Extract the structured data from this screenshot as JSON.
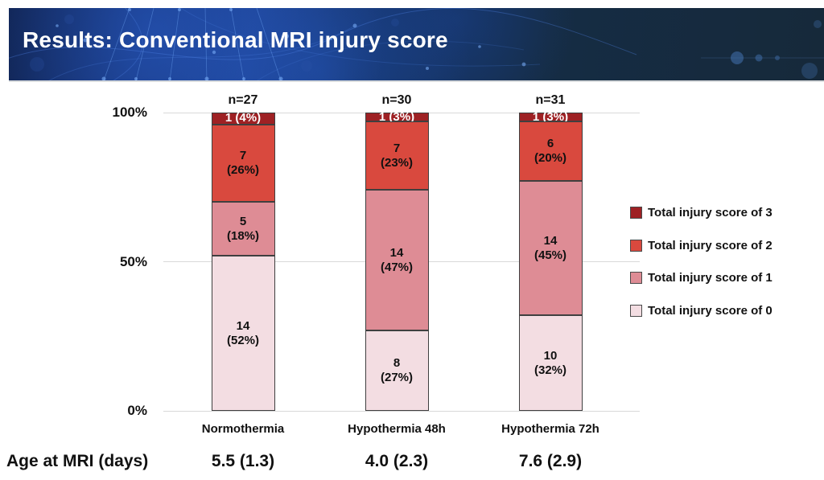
{
  "header": {
    "title": "Results: Conventional MRI injury score"
  },
  "chart_data": {
    "type": "bar",
    "variant": "stacked-100-percent",
    "title": "Results: Conventional MRI injury score",
    "categories": [
      "Normothermia",
      "Hypothermia 48h",
      "Hypothermia 72h"
    ],
    "n_labels": [
      "n=27",
      "n=30",
      "n=31"
    ],
    "ylim": [
      0,
      100
    ],
    "grid": true,
    "legend_position": "right",
    "yticks": [
      {
        "label": "100%",
        "value": 100
      },
      {
        "label": "50%",
        "value": 50
      },
      {
        "label": "0%",
        "value": 0
      }
    ],
    "series": [
      {
        "name": "Total injury score of 0",
        "color": "#f3dde2",
        "counts": [
          14,
          8,
          10
        ],
        "percents": [
          52,
          27,
          32
        ],
        "labels": [
          [
            "14",
            "(52%)"
          ],
          [
            "8",
            "(27%)"
          ],
          [
            "10",
            "(32%)"
          ]
        ],
        "label_color": "#111111"
      },
      {
        "name": "Total injury score of 1",
        "color": "#de8c95",
        "counts": [
          5,
          14,
          14
        ],
        "percents": [
          18,
          47,
          45
        ],
        "labels": [
          [
            "5",
            "(18%)"
          ],
          [
            "14",
            "(47%)"
          ],
          [
            "14",
            "(45%)"
          ]
        ],
        "label_color": "#111111"
      },
      {
        "name": "Total injury score of 2",
        "color": "#d9493e",
        "counts": [
          7,
          7,
          6
        ],
        "percents": [
          26,
          23,
          20
        ],
        "labels": [
          [
            "7",
            "(26%)"
          ],
          [
            "7",
            "(23%)"
          ],
          [
            "6",
            "(20%)"
          ]
        ],
        "label_color": "#111111"
      },
      {
        "name": "Total injury score of 3",
        "color": "#9e2124",
        "counts": [
          1,
          1,
          1
        ],
        "percents": [
          4,
          3,
          3
        ],
        "labels": [
          [
            "1 (4%)"
          ],
          [
            "1 (3%)"
          ],
          [
            "1 (3%)"
          ]
        ],
        "label_color": "#ffffff"
      }
    ]
  },
  "age_row": {
    "label": "Age at MRI (days)",
    "values": [
      "5.5 (1.3)",
      "4.0 (2.3)",
      "7.6 (2.9)"
    ]
  },
  "colors": {
    "banner_navy": "#16293a",
    "banner_blue": "#1a3a80",
    "gridline": "#d9d9d9",
    "segment_border": "#3f3f3f",
    "title_text": "#ffffff",
    "body_text": "#111111"
  }
}
